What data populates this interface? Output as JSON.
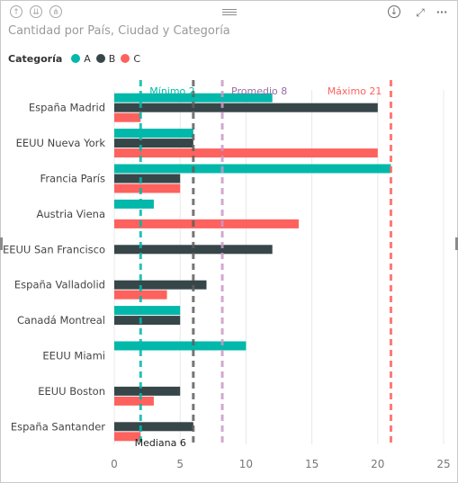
{
  "visual": {
    "title": "Cantidad por País, Ciudad y Categoría"
  },
  "toolbar": {
    "icons": [
      "drill-up-icon",
      "drill-all-down-icon",
      "expand-down-icon",
      "drill-mode-icon",
      "focus-mode-icon",
      "more-options-icon"
    ],
    "more_label": "···"
  },
  "colors": {
    "A": "#01B8AA",
    "B": "#374649",
    "C": "#FD625E",
    "avg": "#C999CA",
    "axis": "#605E5C",
    "grid": "#E8E8E8"
  },
  "chart_data": {
    "type": "bar",
    "orientation": "horizontal",
    "title": "Cantidad por País, Ciudad y Categoría",
    "legend_title": "Categoría",
    "legend_position": "top-left",
    "categories": [
      "España Madrid",
      "EEUU Nueva York",
      "Francia París",
      "Austria Viena",
      "EEUU San Francisco",
      "España Valladolid",
      "Canadá Montreal",
      "EEUU Miami",
      "EEUU Boston",
      "España Santander"
    ],
    "series": [
      {
        "name": "A",
        "values": [
          12,
          6,
          21,
          3,
          null,
          null,
          5,
          10,
          null,
          null
        ]
      },
      {
        "name": "B",
        "values": [
          20,
          6,
          5,
          null,
          12,
          7,
          5,
          null,
          5,
          6
        ]
      },
      {
        "name": "C",
        "values": [
          2,
          20,
          5,
          14,
          null,
          4,
          null,
          null,
          3,
          2
        ]
      }
    ],
    "xlim": [
      0,
      25
    ],
    "xticks": [
      "0",
      "5",
      "10",
      "15",
      "20",
      "25"
    ],
    "grid": true,
    "reference_lines": [
      {
        "label": "Mínimo 2",
        "value": 2,
        "color": "#01B8AA"
      },
      {
        "label": "Mediana 6",
        "value": 6,
        "color": "#605E5C"
      },
      {
        "label": "Promedio 8",
        "value": 8.2,
        "color": "#C999CA"
      },
      {
        "label": "Máximo 21",
        "value": 21,
        "color": "#FD625E"
      }
    ]
  }
}
